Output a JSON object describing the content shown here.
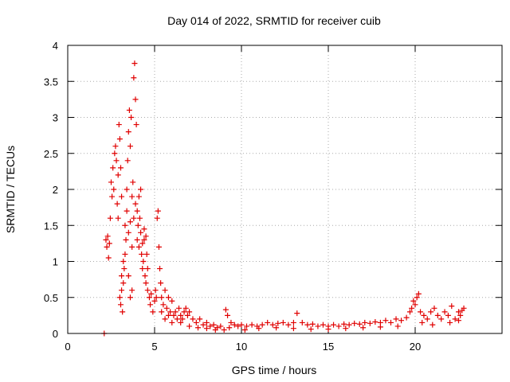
{
  "chart_data": {
    "type": "scatter",
    "title": "Day 014 of 2022, SRMTID for receiver cuib",
    "xlabel": "GPS time / hours",
    "ylabel": "SRMTID / TECUs",
    "xlim": [
      0,
      25
    ],
    "ylim": [
      0,
      4
    ],
    "x_ticks": [
      0,
      5,
      10,
      15,
      20
    ],
    "x_tick_labels": [
      "0",
      "5",
      "10",
      "15",
      "20"
    ],
    "y_ticks": [
      0,
      0.5,
      1,
      1.5,
      2,
      2.5,
      3,
      3.5,
      4
    ],
    "y_tick_labels": [
      "0",
      "0.5",
      "1",
      "1.5",
      "2",
      "2.5",
      "3",
      "3.5",
      "4"
    ],
    "grid": true,
    "marker": "plus",
    "color": "#e00000",
    "series": [
      {
        "name": "SRMTID",
        "points": [
          [
            2.1,
            0.0
          ],
          [
            2.2,
            1.3
          ],
          [
            2.25,
            1.2
          ],
          [
            2.3,
            1.35
          ],
          [
            2.35,
            1.05
          ],
          [
            2.4,
            1.25
          ],
          [
            2.45,
            1.6
          ],
          [
            2.5,
            2.1
          ],
          [
            2.55,
            1.9
          ],
          [
            2.6,
            2.3
          ],
          [
            2.65,
            2.0
          ],
          [
            2.7,
            2.5
          ],
          [
            2.75,
            2.6
          ],
          [
            2.8,
            2.4
          ],
          [
            2.85,
            1.8
          ],
          [
            2.9,
            2.2
          ],
          [
            2.95,
            2.9
          ],
          [
            3.0,
            2.7
          ],
          [
            3.05,
            2.3
          ],
          [
            3.1,
            1.9
          ],
          [
            3.0,
            0.5
          ],
          [
            3.05,
            0.4
          ],
          [
            3.1,
            0.6
          ],
          [
            3.15,
            0.3
          ],
          [
            3.2,
            0.7
          ],
          [
            3.25,
            0.9
          ],
          [
            3.3,
            1.1
          ],
          [
            3.35,
            1.3
          ],
          [
            3.4,
            2.0
          ],
          [
            3.45,
            2.4
          ],
          [
            3.5,
            2.8
          ],
          [
            3.55,
            3.1
          ],
          [
            3.6,
            2.6
          ],
          [
            3.65,
            3.0
          ],
          [
            3.7,
            1.9
          ],
          [
            3.75,
            2.1
          ],
          [
            3.8,
            3.55
          ],
          [
            3.85,
            3.75
          ],
          [
            3.9,
            3.25
          ],
          [
            3.95,
            2.9
          ],
          [
            3.3,
            1.5
          ],
          [
            3.4,
            1.7
          ],
          [
            3.5,
            1.4
          ],
          [
            3.6,
            1.55
          ],
          [
            3.7,
            1.2
          ],
          [
            3.8,
            1.6
          ],
          [
            3.9,
            1.8
          ],
          [
            4.0,
            1.3
          ],
          [
            4.05,
            1.5
          ],
          [
            4.1,
            1.2
          ],
          [
            4.15,
            1.6
          ],
          [
            4.2,
            1.4
          ],
          [
            4.25,
            1.1
          ],
          [
            4.3,
            0.9
          ],
          [
            4.35,
            1.0
          ],
          [
            4.4,
            1.3
          ],
          [
            4.45,
            0.8
          ],
          [
            4.5,
            0.7
          ],
          [
            4.55,
            1.1
          ],
          [
            4.6,
            0.6
          ],
          [
            4.2,
            2.0
          ],
          [
            4.1,
            1.9
          ],
          [
            4.0,
            1.7
          ],
          [
            3.6,
            0.5
          ],
          [
            3.5,
            0.8
          ],
          [
            3.7,
            0.6
          ],
          [
            4.6,
            0.9
          ],
          [
            4.7,
            0.5
          ],
          [
            4.75,
            0.4
          ],
          [
            4.8,
            0.55
          ],
          [
            4.9,
            0.3
          ],
          [
            5.0,
            0.45
          ],
          [
            5.05,
            0.6
          ],
          [
            5.1,
            0.5
          ],
          [
            5.15,
            1.6
          ],
          [
            5.2,
            1.7
          ],
          [
            5.25,
            1.2
          ],
          [
            5.3,
            0.9
          ],
          [
            5.35,
            0.7
          ],
          [
            5.4,
            0.5
          ],
          [
            5.5,
            0.4
          ],
          [
            5.6,
            0.6
          ],
          [
            5.7,
            0.35
          ],
          [
            5.8,
            0.5
          ],
          [
            5.9,
            0.3
          ],
          [
            6.0,
            0.45
          ],
          [
            6.1,
            0.25
          ],
          [
            6.2,
            0.3
          ],
          [
            6.3,
            0.2
          ],
          [
            6.4,
            0.35
          ],
          [
            6.5,
            0.25
          ],
          [
            6.6,
            0.2
          ],
          [
            6.7,
            0.3
          ],
          [
            6.8,
            0.35
          ],
          [
            6.9,
            0.25
          ],
          [
            7.0,
            0.3
          ],
          [
            7.2,
            0.2
          ],
          [
            7.4,
            0.15
          ],
          [
            7.6,
            0.2
          ],
          [
            7.8,
            0.12
          ],
          [
            8.0,
            0.15
          ],
          [
            8.2,
            0.1
          ],
          [
            8.4,
            0.12
          ],
          [
            8.6,
            0.08
          ],
          [
            8.8,
            0.1
          ],
          [
            9.0,
            0.05
          ],
          [
            9.1,
            0.33
          ],
          [
            9.2,
            0.25
          ],
          [
            9.4,
            0.15
          ],
          [
            9.6,
            0.12
          ],
          [
            9.8,
            0.1
          ],
          [
            10.0,
            0.12
          ],
          [
            10.3,
            0.1
          ],
          [
            10.6,
            0.12
          ],
          [
            10.9,
            0.1
          ],
          [
            11.2,
            0.12
          ],
          [
            11.5,
            0.15
          ],
          [
            11.8,
            0.12
          ],
          [
            12.1,
            0.14
          ],
          [
            12.4,
            0.15
          ],
          [
            12.7,
            0.12
          ],
          [
            13.0,
            0.15
          ],
          [
            13.2,
            0.28
          ],
          [
            13.5,
            0.15
          ],
          [
            13.8,
            0.12
          ],
          [
            14.1,
            0.13
          ],
          [
            14.4,
            0.1
          ],
          [
            14.7,
            0.12
          ],
          [
            15.0,
            0.1
          ],
          [
            15.3,
            0.12
          ],
          [
            15.6,
            0.1
          ],
          [
            15.9,
            0.13
          ],
          [
            16.2,
            0.12
          ],
          [
            16.5,
            0.14
          ],
          [
            16.8,
            0.13
          ],
          [
            17.1,
            0.15
          ],
          [
            17.4,
            0.14
          ],
          [
            17.7,
            0.16
          ],
          [
            18.0,
            0.15
          ],
          [
            18.3,
            0.18
          ],
          [
            18.6,
            0.15
          ],
          [
            18.9,
            0.2
          ],
          [
            19.2,
            0.18
          ],
          [
            19.5,
            0.22
          ],
          [
            19.7,
            0.3
          ],
          [
            19.8,
            0.35
          ],
          [
            19.9,
            0.45
          ],
          [
            20.0,
            0.4
          ],
          [
            20.1,
            0.5
          ],
          [
            20.2,
            0.55
          ],
          [
            20.3,
            0.3
          ],
          [
            20.5,
            0.25
          ],
          [
            20.7,
            0.2
          ],
          [
            20.9,
            0.3
          ],
          [
            21.1,
            0.35
          ],
          [
            21.3,
            0.25
          ],
          [
            21.5,
            0.2
          ],
          [
            21.7,
            0.3
          ],
          [
            21.9,
            0.25
          ],
          [
            22.1,
            0.38
          ],
          [
            22.3,
            0.2
          ],
          [
            22.5,
            0.3
          ],
          [
            22.6,
            0.25
          ],
          [
            22.7,
            0.32
          ],
          [
            22.8,
            0.35
          ],
          [
            5.4,
            0.3
          ],
          [
            5.6,
            0.2
          ],
          [
            5.8,
            0.25
          ],
          [
            6.0,
            0.15
          ],
          [
            6.5,
            0.15
          ],
          [
            7.0,
            0.1
          ],
          [
            7.5,
            0.08
          ],
          [
            8.0,
            0.07
          ],
          [
            8.5,
            0.05
          ],
          [
            9.3,
            0.08
          ],
          [
            10.2,
            0.05
          ],
          [
            11.0,
            0.07
          ],
          [
            12.0,
            0.08
          ],
          [
            13.0,
            0.07
          ],
          [
            14.0,
            0.06
          ],
          [
            15.0,
            0.06
          ],
          [
            16.0,
            0.07
          ],
          [
            17.0,
            0.08
          ],
          [
            18.0,
            0.09
          ],
          [
            19.0,
            0.1
          ],
          [
            20.4,
            0.15
          ],
          [
            21.0,
            0.12
          ],
          [
            22.0,
            0.15
          ],
          [
            22.5,
            0.18
          ],
          [
            4.4,
            1.45
          ],
          [
            4.5,
            1.35
          ],
          [
            4.3,
            1.25
          ],
          [
            3.2,
            1.0
          ],
          [
            3.1,
            0.8
          ],
          [
            2.9,
            1.6
          ]
        ]
      }
    ]
  }
}
